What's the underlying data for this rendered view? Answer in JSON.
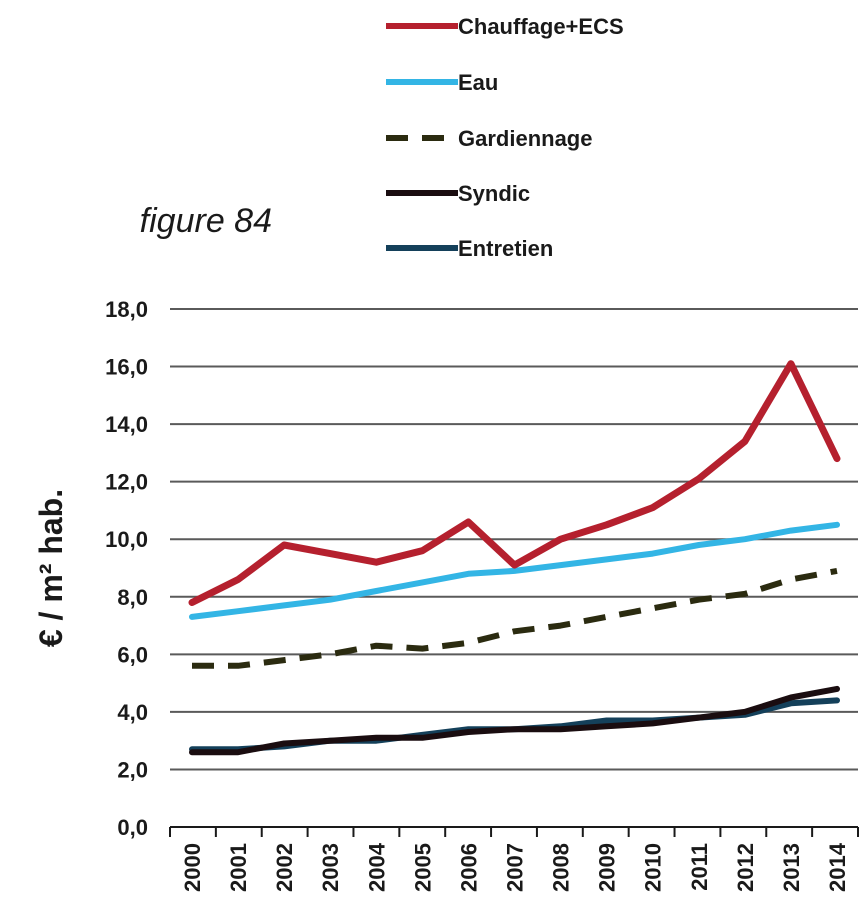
{
  "caption": "figure 84",
  "chart_data": {
    "type": "line",
    "title": "",
    "xlabel": "",
    "ylabel": "€ / m² hab.",
    "ylim": [
      0,
      18
    ],
    "yticks": [
      0,
      2,
      4,
      6,
      8,
      10,
      12,
      14,
      16,
      18
    ],
    "ytick_labels": [
      "0,0",
      "2,0",
      "4,0",
      "6,0",
      "8,0",
      "10,0",
      "12,0",
      "14,0",
      "16,0",
      "18,0"
    ],
    "grid": true,
    "legend_position": "top",
    "x": [
      "2000",
      "2001",
      "2002",
      "2003",
      "2004",
      "2005",
      "2006",
      "2007",
      "2008",
      "2009",
      "2010",
      "2011",
      "2012",
      "2013",
      "2014"
    ],
    "series": [
      {
        "name": "Chauffage+ECS",
        "color": "#b5202e",
        "style": "solid",
        "values": [
          7.8,
          8.6,
          9.8,
          9.5,
          9.2,
          9.6,
          10.6,
          9.1,
          10.0,
          10.5,
          11.1,
          12.1,
          13.4,
          16.1,
          12.8
        ]
      },
      {
        "name": "Eau",
        "color": "#33b5e5",
        "style": "solid",
        "values": [
          7.3,
          7.5,
          7.7,
          7.9,
          8.2,
          8.5,
          8.8,
          8.9,
          9.1,
          9.3,
          9.5,
          9.8,
          10.0,
          10.3,
          10.5
        ]
      },
      {
        "name": "Gardiennage",
        "color": "#2b2b10",
        "style": "dashed",
        "values": [
          5.6,
          5.6,
          5.8,
          6.0,
          6.3,
          6.2,
          6.4,
          6.8,
          7.0,
          7.3,
          7.6,
          7.9,
          8.1,
          8.6,
          8.9
        ]
      },
      {
        "name": "Syndic",
        "color": "#1a0d10",
        "style": "solid",
        "values": [
          2.6,
          2.6,
          2.9,
          3.0,
          3.1,
          3.1,
          3.3,
          3.4,
          3.4,
          3.5,
          3.6,
          3.8,
          4.0,
          4.5,
          4.8
        ]
      },
      {
        "name": "Entretien",
        "color": "#14405a",
        "style": "solid",
        "values": [
          2.7,
          2.7,
          2.8,
          3.0,
          3.0,
          3.2,
          3.4,
          3.4,
          3.5,
          3.7,
          3.7,
          3.8,
          3.9,
          4.3,
          4.4
        ]
      }
    ]
  }
}
